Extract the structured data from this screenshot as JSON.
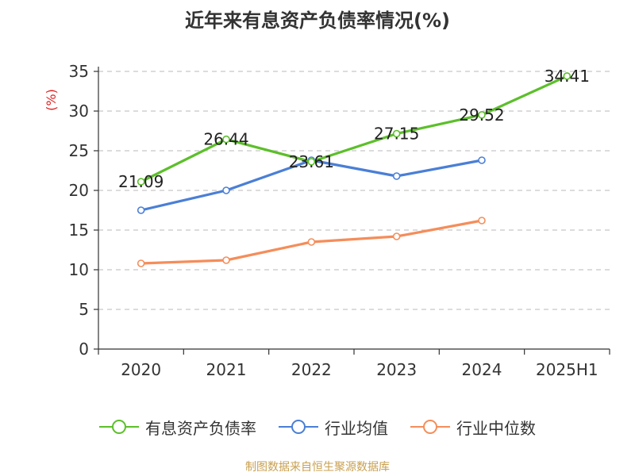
{
  "title": "近年来有息资产负债率情况(%)",
  "source_text": "制图数据来自恒生聚源数据库",
  "chart_data": {
    "type": "line",
    "title": "近年来有息资产负债率情况(%)",
    "xlabel": "",
    "ylabel": "(%)",
    "categories": [
      "2020",
      "2021",
      "2022",
      "2023",
      "2024",
      "2025H1"
    ],
    "ylim": [
      0,
      35
    ],
    "yticks": [
      0,
      5,
      10,
      15,
      20,
      25,
      30,
      35
    ],
    "grid": true,
    "legend_position": "bottom",
    "series": [
      {
        "name": "有息资产负债率",
        "color": "#5cbf2a",
        "values": [
          21.09,
          26.44,
          23.61,
          27.15,
          29.52,
          34.41
        ],
        "labels": [
          "21.09",
          "26.44",
          "23.61",
          "27.15",
          "29.52",
          "34.41"
        ]
      },
      {
        "name": "行业均值",
        "color": "#4a7fd6",
        "values": [
          17.5,
          20.0,
          23.8,
          21.8,
          23.8,
          null
        ]
      },
      {
        "name": "行业中位数",
        "color": "#f58d5a",
        "values": [
          10.8,
          11.2,
          13.5,
          14.2,
          16.2,
          null
        ]
      }
    ]
  }
}
